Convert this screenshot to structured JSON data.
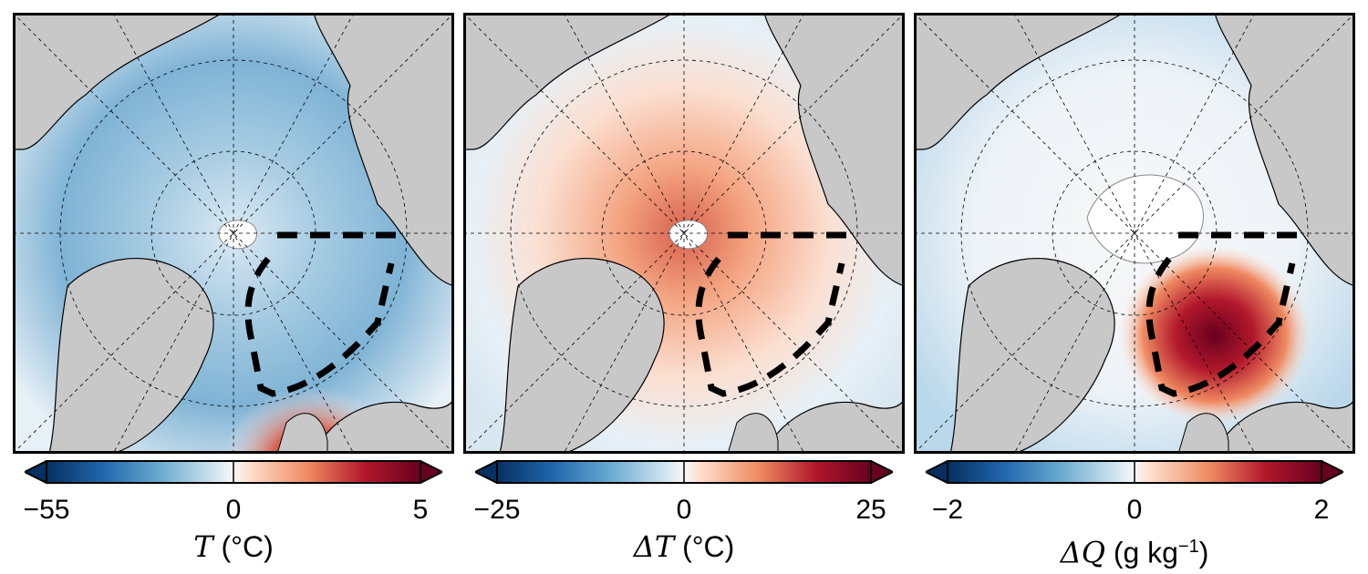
{
  "panels": [
    {
      "id": "T",
      "colorbar": {
        "min": "−55",
        "mid": "0",
        "max": "5",
        "cmap": "RdBu_r",
        "extend": "both"
      },
      "label": {
        "symbol": "T",
        "unit": "(°C)"
      }
    },
    {
      "id": "dT",
      "colorbar": {
        "min": "−25",
        "mid": "0",
        "max": "25",
        "cmap": "RdBu_r",
        "extend": "both"
      },
      "label": {
        "symbol": "ΔT",
        "unit": "(°C)"
      }
    },
    {
      "id": "dQ",
      "colorbar": {
        "min": "−2",
        "mid": "0",
        "max": "2",
        "cmap": "RdBu_r",
        "extend": "both"
      },
      "label": {
        "symbol": "ΔQ",
        "unit_prefix": "(g kg",
        "unit_exp": "−1",
        "unit_suffix": ")"
      }
    }
  ],
  "colors": {
    "land": "#c8c8c8",
    "deep_blue": "#1f5c99",
    "light_blue": "#a9cde3",
    "near_white": "#f4f1ee",
    "light_red": "#f3b59a",
    "deep_red": "#8b0a23",
    "box": "#000000"
  }
}
